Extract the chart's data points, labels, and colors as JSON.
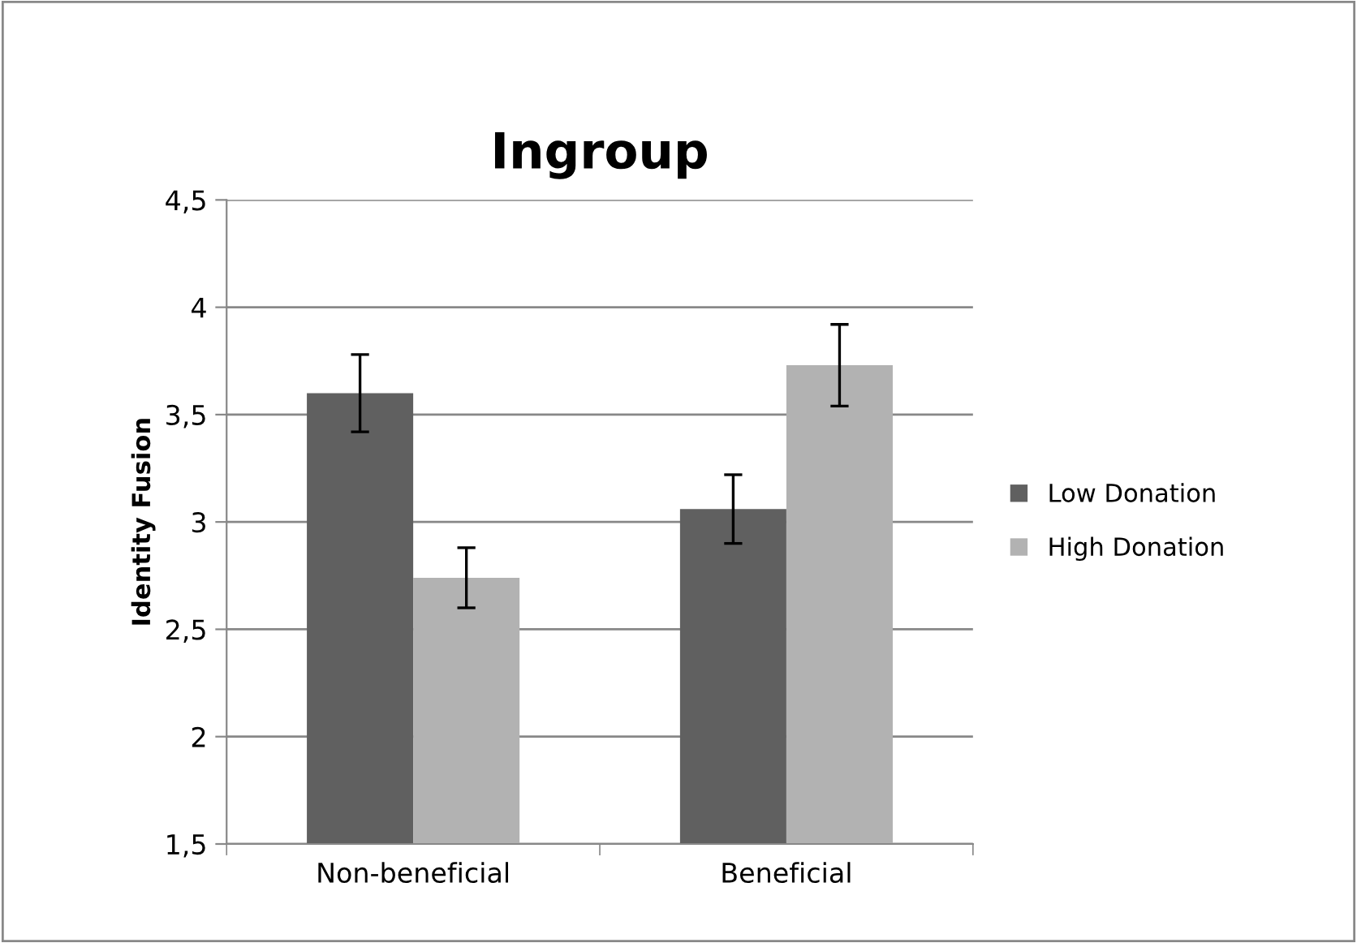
{
  "chart_data": {
    "type": "bar",
    "title": "Ingroup",
    "ylabel": "Identity Fusion",
    "categories": [
      "Non-beneficial",
      "Beneficial"
    ],
    "series": [
      {
        "name": "Low Donation",
        "color": "#606060",
        "values": [
          3.6,
          3.06
        ],
        "errors": [
          0.18,
          0.16
        ]
      },
      {
        "name": "High Donation",
        "color": "#b2b2b2",
        "values": [
          2.74,
          3.73
        ],
        "errors": [
          0.14,
          0.19
        ]
      }
    ],
    "ylim": [
      1.5,
      4.5
    ],
    "yticks": [
      {
        "value": 1.5,
        "label": "1,5"
      },
      2,
      {
        "value": 2.5,
        "label": "2,5"
      },
      3,
      {
        "value": 3.5,
        "label": "3,5"
      },
      4,
      {
        "value": 4.5,
        "label": "4,5"
      }
    ],
    "grid": "y",
    "legend": "right"
  }
}
